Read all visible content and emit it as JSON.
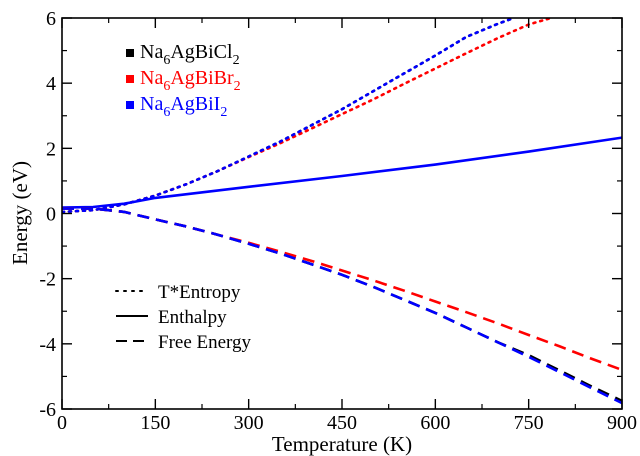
{
  "chart_data": {
    "type": "line",
    "xlabel": "Temperature (K)",
    "ylabel": "Energy (eV)",
    "xlim": [
      0,
      900
    ],
    "ylim": [
      -6,
      6
    ],
    "xticks": [
      0,
      150,
      300,
      450,
      600,
      750,
      900
    ],
    "yticks": [
      -6,
      -4,
      -2,
      0,
      2,
      4,
      6
    ],
    "xtick_labels": [
      "0",
      "150",
      "300",
      "450",
      "600",
      "750",
      "900"
    ],
    "ytick_labels": [
      "-6",
      "-4",
      "-2",
      "0",
      "2",
      "4",
      "6"
    ],
    "grid": false,
    "legend_compounds": {
      "placement": "top-left",
      "entries": [
        {
          "base": "Na",
          "sub1": "6",
          "mid": "AgBiCl",
          "sub2": "2",
          "color": "#000000"
        },
        {
          "base": "Na",
          "sub1": "6",
          "mid": "AgBiBr",
          "sub2": "2",
          "color": "#ff0000"
        },
        {
          "base": "Na",
          "sub1": "6",
          "mid": "AgBiI",
          "sub2": "2",
          "color": "#0000ff"
        }
      ]
    },
    "legend_styles": {
      "placement": "bottom-left",
      "entries": [
        {
          "label": "T*Entropy",
          "dash": "dotted"
        },
        {
          "label": "Enthalpy",
          "dash": "solid"
        },
        {
          "label": "Free Energy",
          "dash": "dashed"
        }
      ]
    },
    "series": [
      {
        "compound": "Na6AgBiCl2",
        "quantity": "T*Entropy",
        "color": "#000000",
        "dash": "dotted",
        "x": [
          0,
          50,
          100,
          150,
          200,
          250,
          300,
          350,
          400,
          450,
          500,
          550,
          600,
          650,
          700,
          726
        ],
        "y": [
          0.05,
          0.1,
          0.28,
          0.55,
          0.9,
          1.3,
          1.75,
          2.2,
          2.7,
          3.2,
          3.75,
          4.3,
          4.85,
          5.42,
          5.82,
          6.0
        ]
      },
      {
        "compound": "Na6AgBiBr2",
        "quantity": "T*Entropy",
        "color": "#ff0000",
        "dash": "dotted",
        "x": [
          0,
          50,
          100,
          150,
          200,
          250,
          300,
          350,
          400,
          450,
          500,
          550,
          600,
          650,
          700,
          750,
          786
        ],
        "y": [
          0.05,
          0.1,
          0.28,
          0.55,
          0.9,
          1.3,
          1.73,
          2.15,
          2.6,
          3.05,
          3.5,
          3.98,
          4.45,
          4.92,
          5.38,
          5.8,
          6.0
        ]
      },
      {
        "compound": "Na6AgBiI2",
        "quantity": "T*Entropy",
        "color": "#0000ff",
        "dash": "dotted",
        "x": [
          0,
          50,
          100,
          150,
          200,
          250,
          300,
          350,
          400,
          450,
          500,
          550,
          600,
          650,
          700,
          726
        ],
        "y": [
          0.05,
          0.1,
          0.28,
          0.55,
          0.9,
          1.3,
          1.75,
          2.2,
          2.7,
          3.2,
          3.75,
          4.3,
          4.85,
          5.42,
          5.82,
          6.0
        ]
      },
      {
        "compound": "Na6AgBiI2",
        "quantity": "Enthalpy",
        "color": "#0000ff",
        "dash": "solid",
        "x": [
          0,
          50,
          100,
          150,
          300,
          450,
          600,
          750,
          900
        ],
        "y": [
          0.18,
          0.2,
          0.3,
          0.48,
          0.82,
          1.15,
          1.5,
          1.9,
          2.33
        ]
      },
      {
        "compound": "Na6AgBiCl2",
        "quantity": "Free Energy",
        "color": "#000000",
        "dash": "dashed",
        "x": [
          0,
          50,
          100,
          150,
          200,
          250,
          300,
          350,
          400,
          450,
          500,
          550,
          600,
          650,
          700,
          750,
          800,
          850,
          900
        ],
        "y": [
          0.15,
          0.15,
          0.05,
          -0.18,
          -0.4,
          -0.65,
          -0.93,
          -1.22,
          -1.55,
          -1.88,
          -2.25,
          -2.65,
          -3.05,
          -3.5,
          -3.95,
          -4.35,
          -4.82,
          -5.3,
          -5.75
        ]
      },
      {
        "compound": "Na6AgBiBr2",
        "quantity": "Free Energy",
        "color": "#ff0000",
        "dash": "dashed",
        "x": [
          0,
          50,
          100,
          150,
          200,
          250,
          300,
          350,
          400,
          450,
          500,
          550,
          600,
          650,
          700,
          750,
          800,
          850,
          900
        ],
        "y": [
          0.15,
          0.15,
          0.05,
          -0.18,
          -0.4,
          -0.65,
          -0.9,
          -1.17,
          -1.45,
          -1.75,
          -2.05,
          -2.37,
          -2.7,
          -3.03,
          -3.37,
          -3.73,
          -4.08,
          -4.45,
          -4.8
        ]
      },
      {
        "compound": "Na6AgBiI2",
        "quantity": "Free Energy",
        "color": "#0000ff",
        "dash": "dashed",
        "x": [
          0,
          50,
          100,
          150,
          200,
          250,
          300,
          350,
          400,
          450,
          500,
          550,
          600,
          650,
          700,
          750,
          800,
          850,
          900
        ],
        "y": [
          0.15,
          0.15,
          0.05,
          -0.18,
          -0.4,
          -0.65,
          -0.93,
          -1.22,
          -1.55,
          -1.88,
          -2.25,
          -2.65,
          -3.05,
          -3.5,
          -3.95,
          -4.4,
          -4.87,
          -5.35,
          -5.82
        ]
      }
    ]
  }
}
